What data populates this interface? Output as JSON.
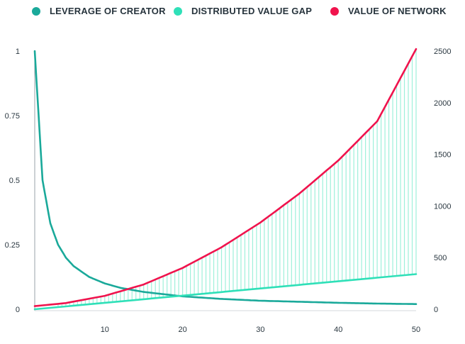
{
  "legend": [
    {
      "label": "LEVERAGE OF CREATOR",
      "color": "#1aa99a"
    },
    {
      "label": "DISTRIBUTED VALUE GAP",
      "color": "#2fe0b8"
    },
    {
      "label": "VALUE OF NETWORK",
      "color": "#f0134d"
    }
  ],
  "chart_data": {
    "type": "line",
    "x_range": [
      1,
      50
    ],
    "x_ticks": [
      10,
      20,
      30,
      40,
      50
    ],
    "y_left": {
      "range": [
        0,
        1
      ],
      "ticks": [
        "0",
        "0.25",
        "0.5",
        "0.75",
        "1"
      ]
    },
    "y_right": {
      "range": [
        0,
        2500
      ],
      "ticks": [
        "0",
        "500",
        "1000",
        "1500",
        "2000",
        "2500"
      ]
    },
    "series": [
      {
        "name": "LEVERAGE OF CREATOR",
        "axis": "left",
        "color": "#1aa99a",
        "x": [
          1,
          2,
          3,
          4,
          5,
          6,
          8,
          10,
          12,
          15,
          20,
          25,
          30,
          35,
          40,
          45,
          50
        ],
        "y": [
          1.0,
          0.5,
          0.333,
          0.25,
          0.2,
          0.167,
          0.125,
          0.1,
          0.083,
          0.067,
          0.05,
          0.04,
          0.033,
          0.029,
          0.025,
          0.022,
          0.02
        ]
      },
      {
        "name": "DISTRIBUTED VALUE GAP",
        "axis": "right",
        "color": "#2fe0b8",
        "x": [
          1,
          50
        ],
        "y": [
          0,
          340
        ]
      },
      {
        "name": "VALUE OF NETWORK",
        "axis": "right",
        "color": "#f0134d",
        "x": [
          1,
          5,
          10,
          15,
          20,
          25,
          30,
          35,
          40,
          45,
          50
        ],
        "y": [
          30,
          60,
          130,
          240,
          400,
          600,
          840,
          1120,
          1440,
          1820,
          2520
        ]
      }
    ],
    "fill": {
      "between": [
        "DISTRIBUTED VALUE GAP",
        "VALUE OF NETWORK"
      ],
      "style": "vertical-hatch",
      "color": "#9ef0da"
    }
  }
}
